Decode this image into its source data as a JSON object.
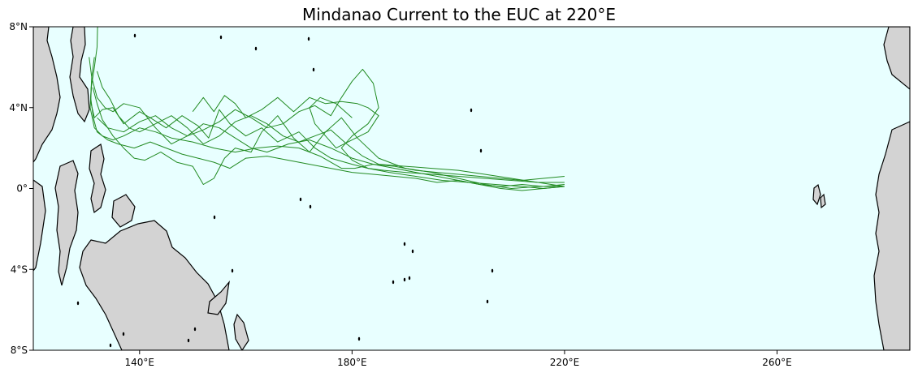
{
  "map": {
    "title": "Mindanao Current to the EUC at 220°E",
    "x_ticks": [
      {
        "value": 140,
        "label": "140°E"
      },
      {
        "value": 180,
        "label": "180°E"
      },
      {
        "value": 220,
        "label": "220°E"
      },
      {
        "value": 260,
        "label": "260°E"
      }
    ],
    "y_ticks": [
      {
        "value": 8,
        "label": "8°N"
      },
      {
        "value": 4,
        "label": "4°N"
      },
      {
        "value": 0,
        "label": "0°"
      },
      {
        "value": -4,
        "label": "4°S"
      },
      {
        "value": -8,
        "label": "8°S"
      }
    ],
    "extent": {
      "lon": [
        120,
        285
      ],
      "lat": [
        -8,
        8
      ]
    },
    "colors": {
      "ocean": "#e8ffff",
      "land": "#d3d3d3",
      "coast": "#000000",
      "trajectory": "#228b22"
    }
  },
  "chart_data": {
    "type": "line",
    "title": "Mindanao Current to the EUC at 220°E",
    "xlabel": "",
    "ylabel": "",
    "xlim": [
      120,
      285
    ],
    "ylim": [
      -8,
      8
    ],
    "series": [
      {
        "x": [
          132.1,
          132.0,
          131.5,
          130.9,
          130.7,
          131.5,
          133.0,
          135.0,
          137.0,
          140.0,
          143.0,
          146.0,
          150.0,
          154.0,
          158.0,
          162.0,
          166.0,
          170.0,
          174.0,
          178.0,
          180.5,
          184.0,
          188.0,
          192.0,
          196.0,
          200.0,
          204.0,
          208.0,
          212.0,
          216.0,
          220.0
        ],
        "y": [
          8.0,
          7.0,
          6.0,
          5.0,
          4.0,
          3.0,
          2.6,
          2.4,
          2.6,
          3.0,
          2.8,
          2.5,
          2.3,
          2.0,
          1.8,
          2.0,
          2.1,
          2.0,
          1.6,
          1.0,
          1.0,
          1.2,
          1.1,
          0.9,
          0.8,
          0.7,
          0.6,
          0.5,
          0.4,
          0.5,
          0.6
        ]
      },
      {
        "x": [
          131.5,
          131.0,
          130.8,
          131.3,
          132.0,
          134.0,
          136.0,
          139.0,
          142.0,
          145.0,
          148.0,
          151.0,
          154.0,
          157.0,
          160.0,
          164.0,
          168.0,
          172.0,
          176.0,
          180.0,
          184.0,
          188.0,
          192.0,
          196.0,
          200.0,
          204.0,
          208.0,
          212.0,
          216.0,
          220.0
        ],
        "y": [
          6.5,
          5.5,
          4.5,
          3.5,
          2.8,
          2.4,
          2.2,
          2.0,
          2.3,
          2.0,
          1.7,
          1.5,
          1.3,
          1.0,
          1.5,
          1.6,
          1.4,
          1.2,
          1.0,
          0.8,
          0.7,
          0.6,
          0.5,
          0.3,
          0.4,
          0.2,
          0.1,
          0.2,
          0.1,
          0.2
        ]
      },
      {
        "x": [
          131.0,
          130.8,
          131.5,
          133.0,
          135.0,
          137.0,
          140.0,
          142.0,
          145.0,
          148.0,
          151.0,
          153.0,
          155.0,
          157.0,
          160.0,
          163.0,
          166.0,
          170.0,
          173.0,
          176.0,
          180.0,
          183.0,
          186.0,
          190.0,
          195.0,
          200.0,
          205.0,
          210.0,
          215.0,
          220.0
        ],
        "y": [
          5.3,
          4.3,
          3.5,
          3.9,
          4.0,
          3.2,
          3.8,
          3.5,
          3.0,
          3.6,
          3.1,
          2.5,
          3.9,
          3.2,
          2.6,
          3.0,
          2.3,
          2.8,
          2.0,
          1.5,
          1.2,
          1.0,
          0.9,
          0.8,
          0.7,
          0.6,
          0.5,
          0.4,
          0.3,
          0.3
        ]
      },
      {
        "x": [
          132.0,
          133.0,
          134.5,
          136.0,
          138.0,
          140.0,
          143.0,
          146.0,
          149.0,
          152.0,
          155.0,
          158.0,
          161.0,
          164.0,
          167.0,
          170.0,
          173.0,
          176.0,
          179.0,
          182.0,
          185.0,
          190.0,
          195.0,
          200.0,
          205.0,
          210.0,
          215.0,
          220.0
        ],
        "y": [
          5.8,
          5.0,
          4.4,
          3.6,
          3.0,
          2.8,
          3.2,
          3.6,
          3.0,
          2.2,
          2.6,
          3.3,
          3.6,
          3.2,
          2.6,
          2.3,
          2.6,
          2.9,
          2.2,
          1.6,
          1.2,
          1.1,
          1.0,
          0.9,
          0.7,
          0.5,
          0.3,
          0.1
        ]
      },
      {
        "x": [
          131.2,
          132.0,
          133.0,
          134.0,
          135.0,
          137.0,
          139.0,
          141.0,
          144.0,
          147.0,
          150.0,
          152.0,
          154.0,
          156.0,
          158.0,
          161.0,
          163.0,
          166.0,
          169.0,
          172.0,
          175.0,
          178.0,
          181.0,
          185.0,
          190.0,
          195.0,
          200.0,
          205.0,
          210.0,
          215.0,
          220.0
        ],
        "y": [
          5.0,
          4.2,
          3.4,
          3.0,
          2.6,
          2.0,
          1.5,
          1.4,
          1.8,
          1.3,
          1.1,
          0.2,
          0.5,
          1.5,
          2.0,
          1.8,
          2.8,
          3.6,
          2.5,
          1.8,
          2.8,
          3.5,
          2.5,
          1.5,
          1.0,
          0.8,
          0.5,
          0.2,
          0.0,
          0.1,
          0.1
        ]
      },
      {
        "x": [
          130.5,
          131.0,
          132.0,
          133.5,
          135.0,
          137.0,
          140.0,
          143.0,
          146.0,
          149.0,
          152.0,
          155.0,
          158.0,
          161.0,
          164.0,
          168.0,
          172.0,
          176.0,
          180.0,
          184.0,
          188.0,
          192.0,
          196.0,
          200.0,
          204.0,
          208.0,
          212.0,
          216.0,
          220.0
        ],
        "y": [
          6.5,
          5.5,
          4.5,
          4.0,
          3.8,
          4.2,
          4.0,
          3.0,
          2.2,
          2.6,
          3.2,
          3.0,
          2.5,
          2.0,
          1.8,
          2.2,
          2.4,
          2.0,
          1.5,
          1.2,
          1.0,
          0.8,
          0.6,
          0.4,
          0.2,
          0.0,
          -0.1,
          0.0,
          0.1
        ]
      },
      {
        "x": [
          132.0,
          134.0,
          137.0,
          140.0,
          143.0,
          146.0,
          149.0,
          152.0,
          155.0,
          158.0,
          161.0,
          164.0,
          167.0,
          170.0,
          173.0,
          176.0,
          178.0,
          180.0,
          182.0,
          184.0,
          185.0,
          183.0,
          180.0,
          178.0,
          180.0,
          183.0,
          187.0,
          192.0,
          197.0,
          202.0,
          207.0,
          212.0,
          216.0,
          220.0
        ],
        "y": [
          3.5,
          3.0,
          2.8,
          3.3,
          3.6,
          3.0,
          2.6,
          2.9,
          3.3,
          3.9,
          3.5,
          3.0,
          3.2,
          3.8,
          4.1,
          3.6,
          4.5,
          5.3,
          5.9,
          5.2,
          4.0,
          3.2,
          2.6,
          2.0,
          1.4,
          1.0,
          0.8,
          0.6,
          0.4,
          0.3,
          0.2,
          0.1,
          0.0,
          0.1
        ]
      },
      {
        "x": [
          150.0,
          152.0,
          154.0,
          156.0,
          158.0,
          160.0,
          163.0,
          166.0,
          169.0,
          172.0,
          175.0,
          178.0,
          181.0,
          183.0,
          185.0,
          183.0,
          180.0,
          177.0,
          175.0,
          173.0,
          172.0,
          174.0,
          177.0,
          180.0
        ],
        "y": [
          3.8,
          4.5,
          3.8,
          4.6,
          4.2,
          3.5,
          3.9,
          4.5,
          3.8,
          4.5,
          4.2,
          4.3,
          4.2,
          4.0,
          3.6,
          2.8,
          2.4,
          2.0,
          2.6,
          3.2,
          4.0,
          4.5,
          4.2,
          3.5
        ]
      }
    ]
  }
}
